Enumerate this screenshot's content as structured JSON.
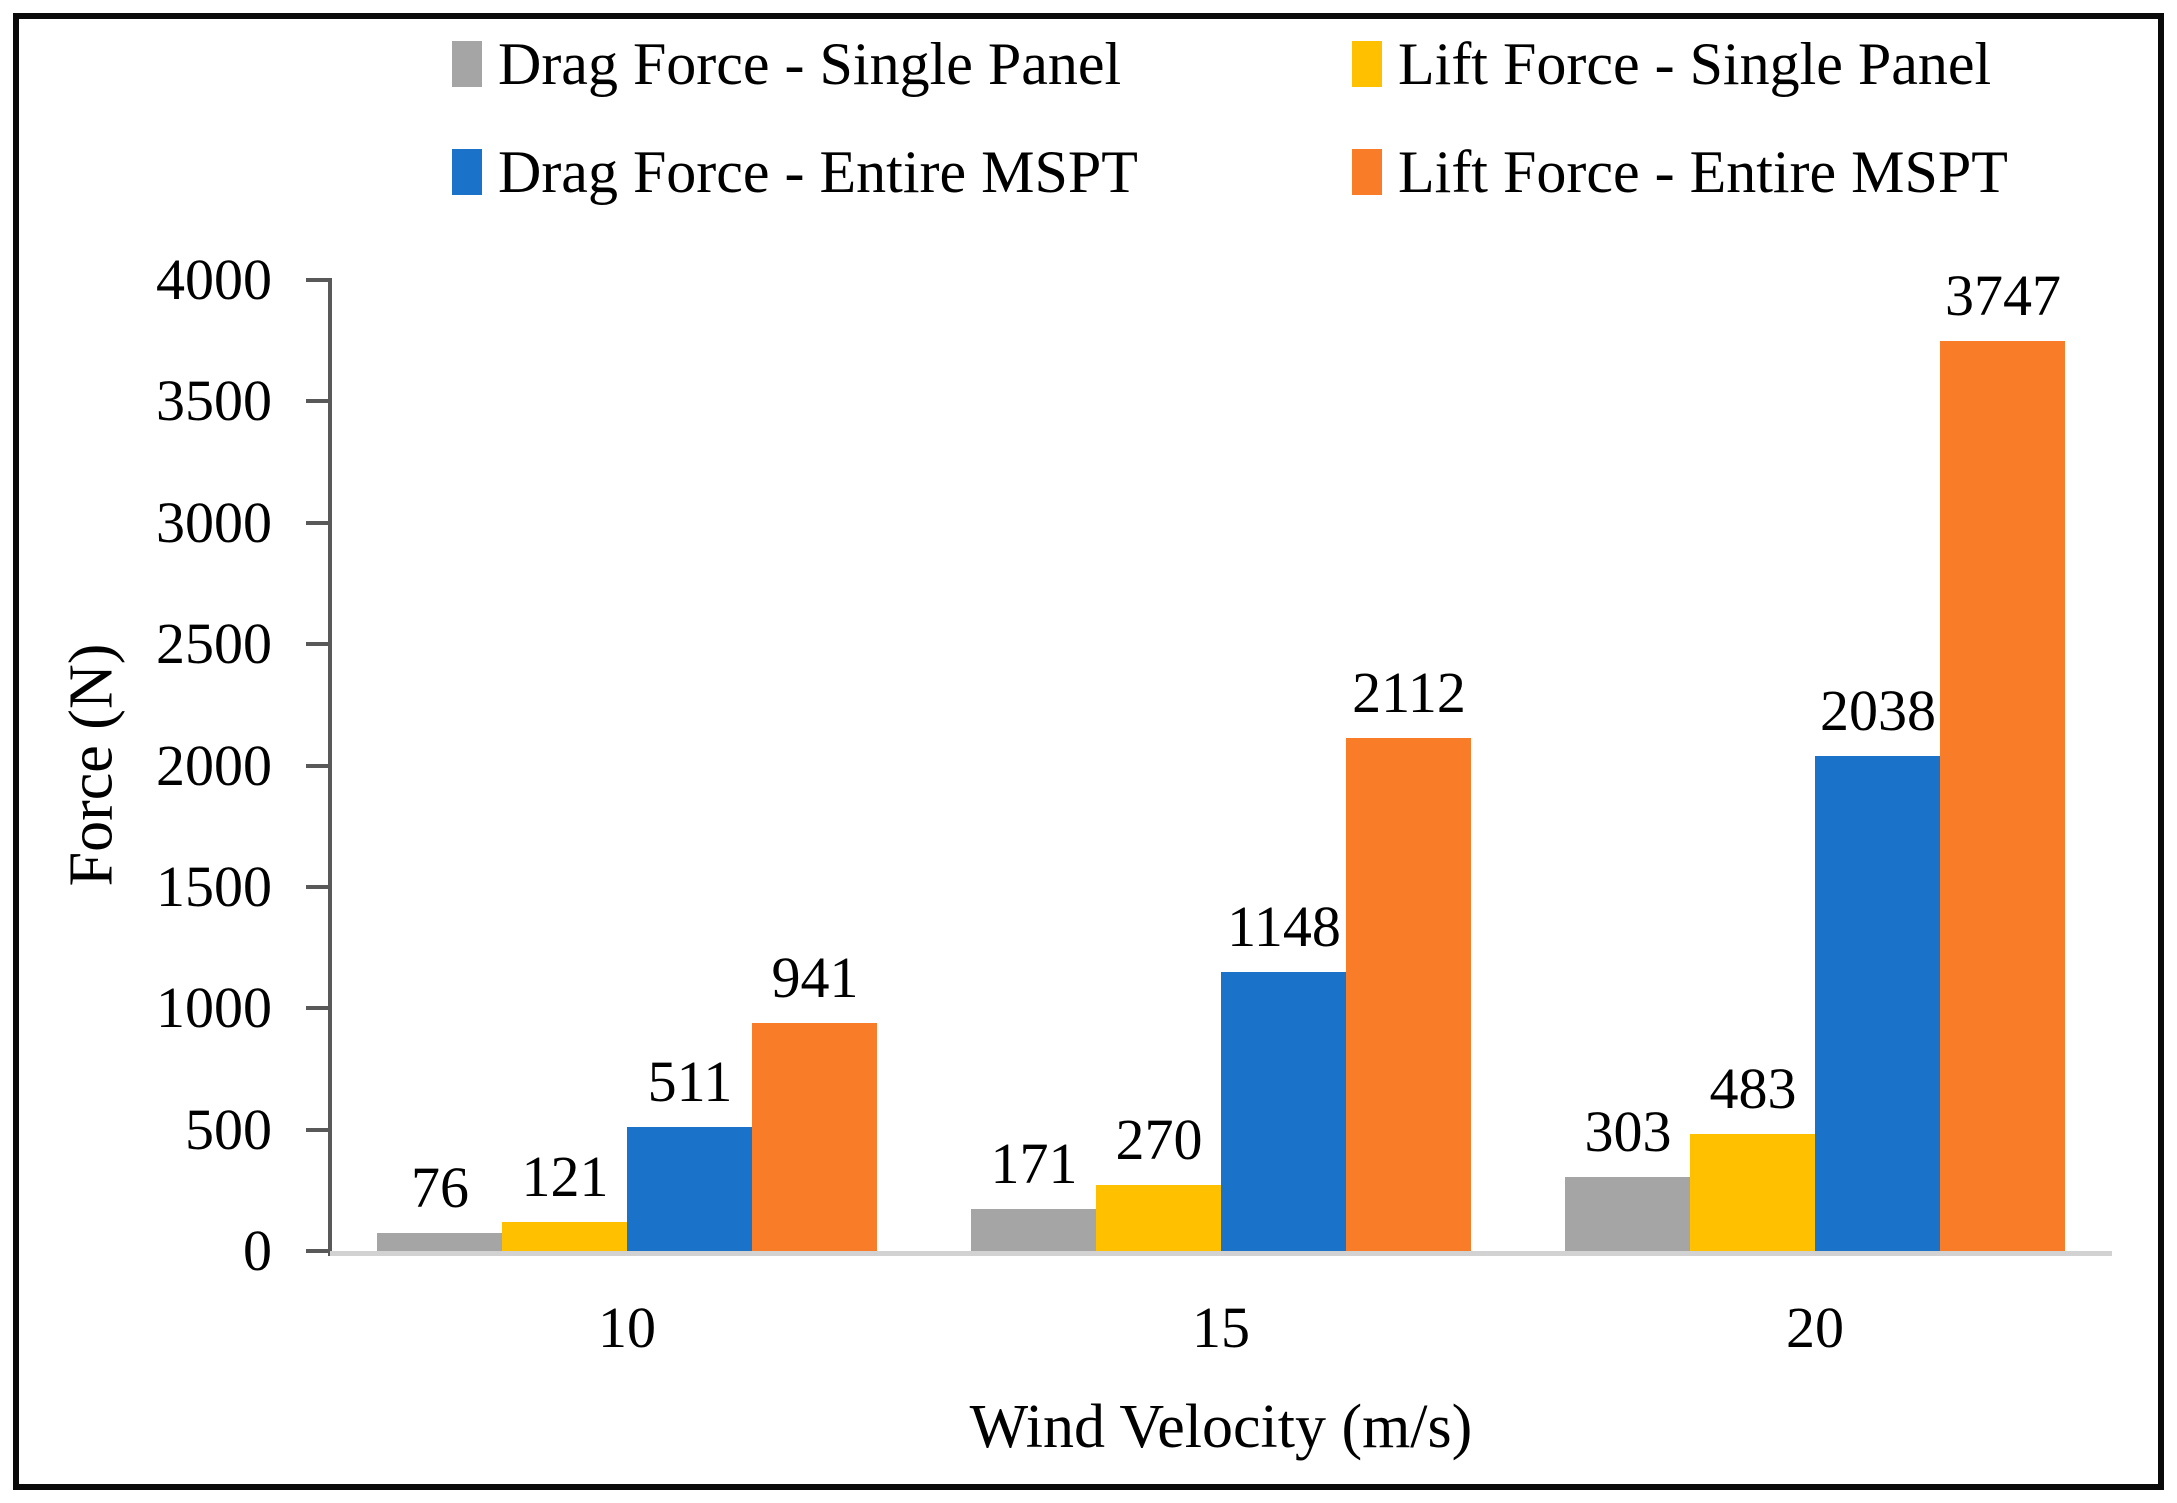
{
  "chart_data": {
    "type": "bar",
    "title": "",
    "xlabel": "Wind Velocity (m/s)",
    "ylabel": "Force (N)",
    "categories": [
      "10",
      "15",
      "20"
    ],
    "series": [
      {
        "name": "Drag Force - Single Panel",
        "color": "#A5A5A5",
        "values": [
          76,
          171,
          303
        ]
      },
      {
        "name": "Lift Force - Single Panel",
        "color": "#FFC000",
        "values": [
          121,
          270,
          483
        ]
      },
      {
        "name": "Drag Force - Entire MSPT",
        "color": "#1A73C8",
        "values": [
          511,
          1148,
          2038
        ]
      },
      {
        "name": "Lift Force - Entire MSPT",
        "color": "#F97D28",
        "values": [
          941,
          2112,
          3747
        ]
      }
    ],
    "ylim": [
      0,
      4000
    ],
    "yticks": [
      0,
      500,
      1000,
      1500,
      2000,
      2500,
      3000,
      3500,
      4000
    ],
    "grid": false,
    "legend_position": "top",
    "legend_columns": 2,
    "data_labels": true,
    "axis_line_color": "#595959",
    "baseline_color": "#D2D2D2"
  }
}
